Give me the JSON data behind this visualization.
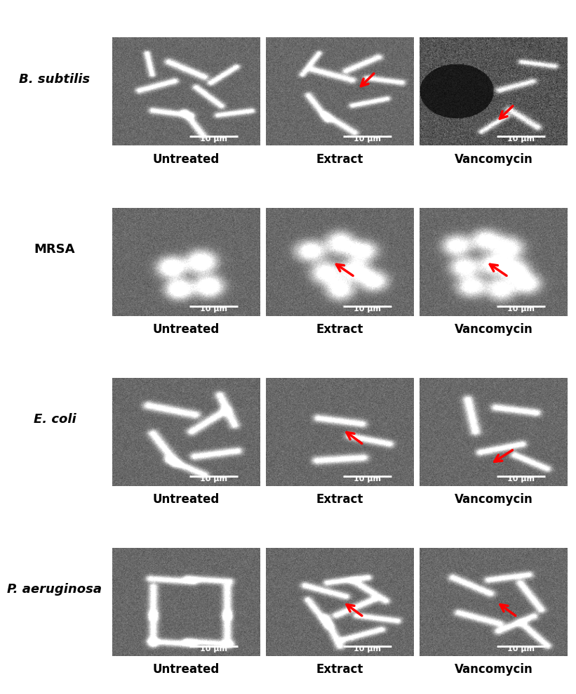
{
  "rows": [
    "B. subtilis",
    "MRSA",
    "E. coli",
    "P. aeruginosa"
  ],
  "cols": [
    "Untreated",
    "Extract",
    "Vancomycin"
  ],
  "row_labels_italic": [
    true,
    false,
    true,
    true
  ],
  "scale_bar_text": "10 μm",
  "figure_bg": "#ffffff",
  "label_fontsize": 12,
  "row_label_fontsize": 13,
  "figsize": [
    8.21,
    9.88
  ],
  "dpi": 100
}
